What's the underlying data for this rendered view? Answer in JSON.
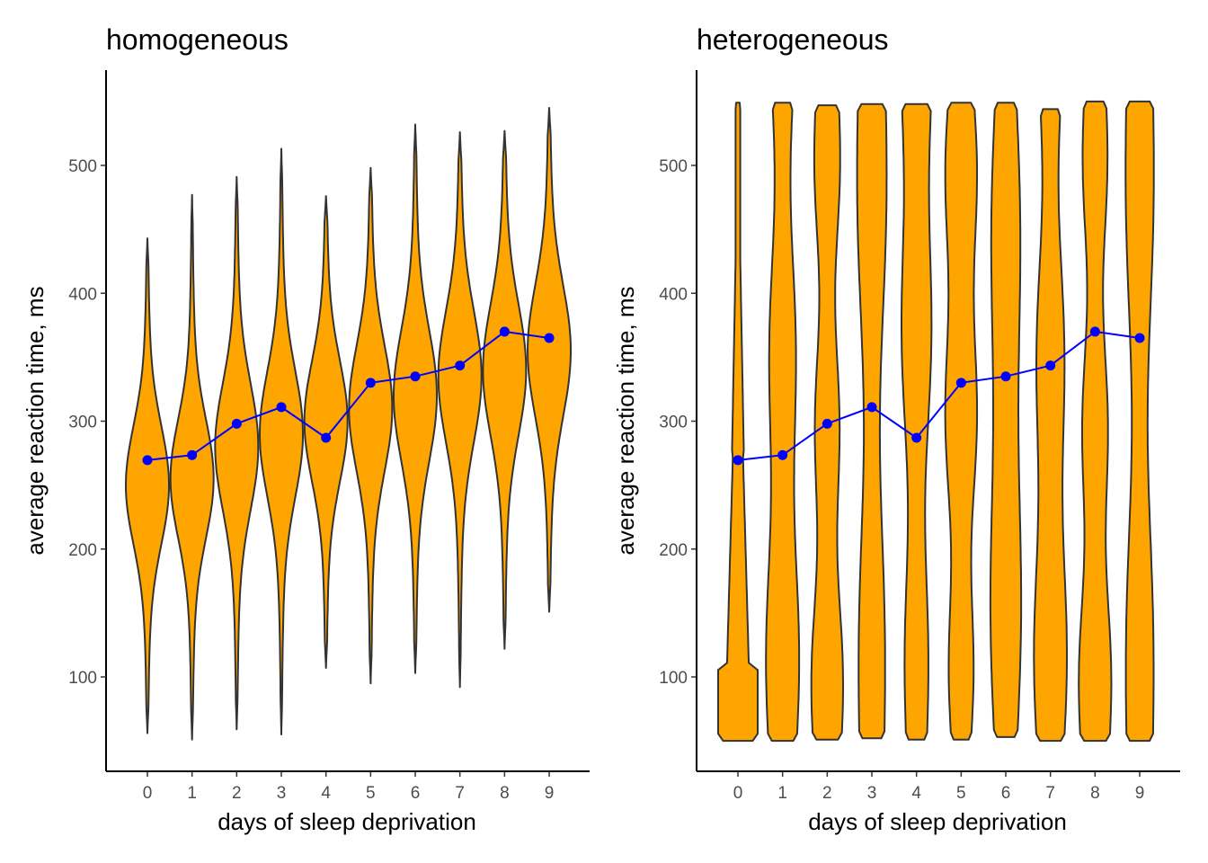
{
  "chart_data": [
    {
      "type": "violin",
      "title": "homogeneous",
      "xlabel": "days of sleep deprivation",
      "ylabel": "average reaction time, ms",
      "categories": [
        "0",
        "1",
        "2",
        "3",
        "4",
        "5",
        "6",
        "7",
        "8",
        "9"
      ],
      "yticks": [
        "100",
        "200",
        "300",
        "400",
        "500"
      ],
      "ylim": [
        30,
        575
      ],
      "grid": false,
      "fill_color": "#FFA500",
      "outline_color": "#333333",
      "line_color": "#0000FF",
      "mean_values": [
        269.5,
        273.5,
        298,
        311,
        287,
        330,
        335,
        343.5,
        370,
        365
      ],
      "violins": [
        {
          "day": 0,
          "min": 56,
          "max": 443,
          "peak": 250,
          "spread": 45
        },
        {
          "day": 1,
          "min": 51,
          "max": 477,
          "peak": 255,
          "spread": 45
        },
        {
          "day": 2,
          "min": 59,
          "max": 491,
          "peak": 280,
          "spread": 48
        },
        {
          "day": 3,
          "min": 55,
          "max": 513,
          "peak": 290,
          "spread": 48
        },
        {
          "day": 4,
          "min": 107,
          "max": 476,
          "peak": 300,
          "spread": 46
        },
        {
          "day": 5,
          "min": 95,
          "max": 498,
          "peak": 310,
          "spread": 48
        },
        {
          "day": 6,
          "min": 103,
          "max": 532,
          "peak": 320,
          "spread": 50
        },
        {
          "day": 7,
          "min": 92,
          "max": 526,
          "peak": 335,
          "spread": 50
        },
        {
          "day": 8,
          "min": 122,
          "max": 527,
          "peak": 340,
          "spread": 50
        },
        {
          "day": 9,
          "min": 151,
          "max": 545,
          "peak": 355,
          "spread": 50
        }
      ]
    },
    {
      "type": "violin",
      "title": "heterogeneous",
      "xlabel": "days of sleep deprivation",
      "ylabel": "average reaction time, ms",
      "categories": [
        "0",
        "1",
        "2",
        "3",
        "4",
        "5",
        "6",
        "7",
        "8",
        "9"
      ],
      "yticks": [
        "100",
        "200",
        "300",
        "400",
        "500"
      ],
      "ylim": [
        30,
        575
      ],
      "grid": false,
      "fill_color": "#FFA500",
      "outline_color": "#333333",
      "line_color": "#0000FF",
      "mean_values": [
        269.5,
        273.5,
        298,
        311,
        287,
        330,
        335,
        343.5,
        370,
        365
      ],
      "violins": [
        {
          "day": 0,
          "min": 50,
          "max": 549
        },
        {
          "day": 1,
          "min": 50,
          "max": 549
        },
        {
          "day": 2,
          "min": 51,
          "max": 547
        },
        {
          "day": 3,
          "min": 52,
          "max": 548
        },
        {
          "day": 4,
          "min": 51,
          "max": 548
        },
        {
          "day": 5,
          "min": 51,
          "max": 549
        },
        {
          "day": 6,
          "min": 53,
          "max": 549
        },
        {
          "day": 7,
          "min": 50,
          "max": 544
        },
        {
          "day": 8,
          "min": 50,
          "max": 550
        },
        {
          "day": 9,
          "min": 50,
          "max": 550
        }
      ]
    }
  ]
}
